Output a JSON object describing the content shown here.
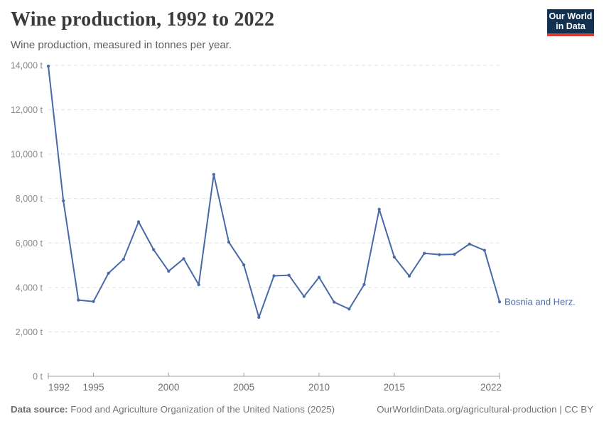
{
  "header": {
    "title": "Wine production, 1992 to 2022",
    "subtitle": "Wine production, measured in tonnes per year."
  },
  "logo": {
    "line1": "Our World",
    "line2": "in Data",
    "bg_color": "#12304f",
    "accent_color": "#dc3d33"
  },
  "chart_data": {
    "type": "line",
    "title": "Wine production, 1992 to 2022",
    "subtitle": "Wine production, measured in tonnes per year.",
    "ylabel": "tonnes per year",
    "unit": "t",
    "x_range": [
      1992,
      2022
    ],
    "ylim": [
      0,
      14000
    ],
    "grid": "horizontal-dashed",
    "legend_position": "end-of-line label",
    "yticks": [
      {
        "value": 0,
        "label": "0 t"
      },
      {
        "value": 2000,
        "label": "2,000 t"
      },
      {
        "value": 4000,
        "label": "4,000 t"
      },
      {
        "value": 6000,
        "label": "6,000 t"
      },
      {
        "value": 8000,
        "label": "8,000 t"
      },
      {
        "value": 10000,
        "label": "10,000 t"
      },
      {
        "value": 12000,
        "label": "12,000 t"
      },
      {
        "value": 14000,
        "label": "14,000 t"
      }
    ],
    "xticks": [
      {
        "value": 1992,
        "label": "1992"
      },
      {
        "value": 1995,
        "label": "1995"
      },
      {
        "value": 2000,
        "label": "2000"
      },
      {
        "value": 2005,
        "label": "2005"
      },
      {
        "value": 2010,
        "label": "2010"
      },
      {
        "value": 2015,
        "label": "2015"
      },
      {
        "value": 2022,
        "label": "2022"
      }
    ],
    "series": [
      {
        "name": "Bosnia and Herz.",
        "color": "#4868a8",
        "years": [
          1992,
          1993,
          1994,
          1995,
          1996,
          1997,
          1998,
          1999,
          2000,
          2001,
          2002,
          2003,
          2004,
          2005,
          2006,
          2007,
          2008,
          2009,
          2010,
          2011,
          2012,
          2013,
          2014,
          2015,
          2016,
          2017,
          2018,
          2019,
          2020,
          2021,
          2022
        ],
        "values": [
          13961,
          7901,
          3431,
          3367,
          4641,
          5268,
          6955,
          5701,
          4732,
          5293,
          4123,
          9088,
          6039,
          5015,
          2652,
          4524,
          4550,
          3594,
          4459,
          3340,
          3028,
          4135,
          7520,
          5371,
          4511,
          5538,
          5476,
          5494,
          5955,
          5672,
          3352
        ]
      }
    ]
  },
  "footer": {
    "source_label": "Data source:",
    "source_text": "Food and Agriculture Organization of the United Nations (2025)",
    "link_text": "OurWorldinData.org/agricultural-production",
    "separator": "|",
    "license_text": "CC BY"
  }
}
